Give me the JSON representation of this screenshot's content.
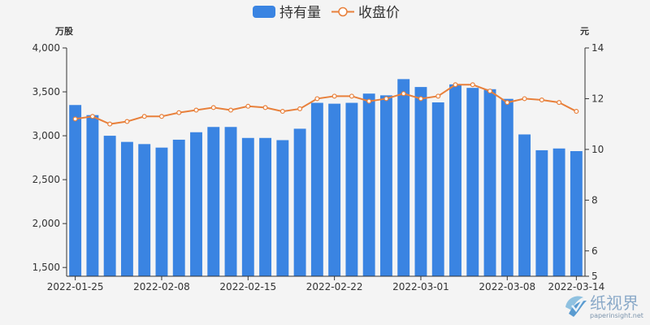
{
  "legend": {
    "bar_label": "持有量",
    "line_label": "收盘价"
  },
  "units": {
    "left": "万股",
    "right": "元"
  },
  "colors": {
    "bar": "#3a84e2",
    "line": "#e8803b",
    "point_fill": "#ffffff",
    "axis": "#333333",
    "background": "#f4f4f4"
  },
  "watermark": {
    "text_cn": "纸视界",
    "text_en": "paperinsight.net"
  },
  "chart_data": {
    "type": "bar",
    "categories": [
      "2022-01-25",
      "2022-01-26",
      "2022-01-27",
      "2022-01-28",
      "2022-02-07",
      "2022-02-08",
      "2022-02-09",
      "2022-02-10",
      "2022-02-11",
      "2022-02-14",
      "2022-02-15",
      "2022-02-16",
      "2022-02-17",
      "2022-02-18",
      "2022-02-21",
      "2022-02-22",
      "2022-02-23",
      "2022-02-24",
      "2022-02-25",
      "2022-02-28",
      "2022-03-01",
      "2022-03-02",
      "2022-03-03",
      "2022-03-04",
      "2022-03-07",
      "2022-03-08",
      "2022-03-09",
      "2022-03-10",
      "2022-03-11",
      "2022-03-14"
    ],
    "x_tick_labels": [
      "2022-01-25",
      "2022-02-08",
      "2022-02-15",
      "2022-02-22",
      "2022-03-01",
      "2022-03-08",
      "2022-03-14"
    ],
    "series": [
      {
        "name": "持有量",
        "type": "bar",
        "axis": "left",
        "values": [
          3350,
          3235,
          3000,
          2930,
          2905,
          2865,
          2955,
          3040,
          3100,
          3100,
          2975,
          2975,
          2950,
          3080,
          3375,
          3365,
          3375,
          3480,
          3460,
          3645,
          3555,
          3380,
          3585,
          3545,
          3530,
          3420,
          3015,
          2835,
          2855,
          2825
        ]
      },
      {
        "name": "收盘价",
        "type": "line",
        "axis": "right",
        "values": [
          11.2,
          11.3,
          11.0,
          11.1,
          11.3,
          11.3,
          11.45,
          11.55,
          11.65,
          11.55,
          11.7,
          11.65,
          11.5,
          11.6,
          12.0,
          12.1,
          12.1,
          11.9,
          12.0,
          12.2,
          12.0,
          12.1,
          12.55,
          12.55,
          12.3,
          11.85,
          12.0,
          11.95,
          11.85,
          11.5
        ]
      }
    ],
    "y_left": {
      "min": 1400,
      "max": 4000,
      "ticks": [
        1500,
        2000,
        2500,
        3000,
        3500,
        4000
      ],
      "tick_labels": [
        "1,500",
        "2,000",
        "2,500",
        "3,000",
        "3,500",
        "4,000"
      ]
    },
    "y_right": {
      "min": 5,
      "max": 14,
      "ticks": [
        5,
        6,
        8,
        10,
        12,
        14
      ],
      "tick_labels": [
        "5",
        "6",
        "8",
        "10",
        "12",
        "14"
      ]
    },
    "grid": false,
    "legend_position": "top-center"
  }
}
